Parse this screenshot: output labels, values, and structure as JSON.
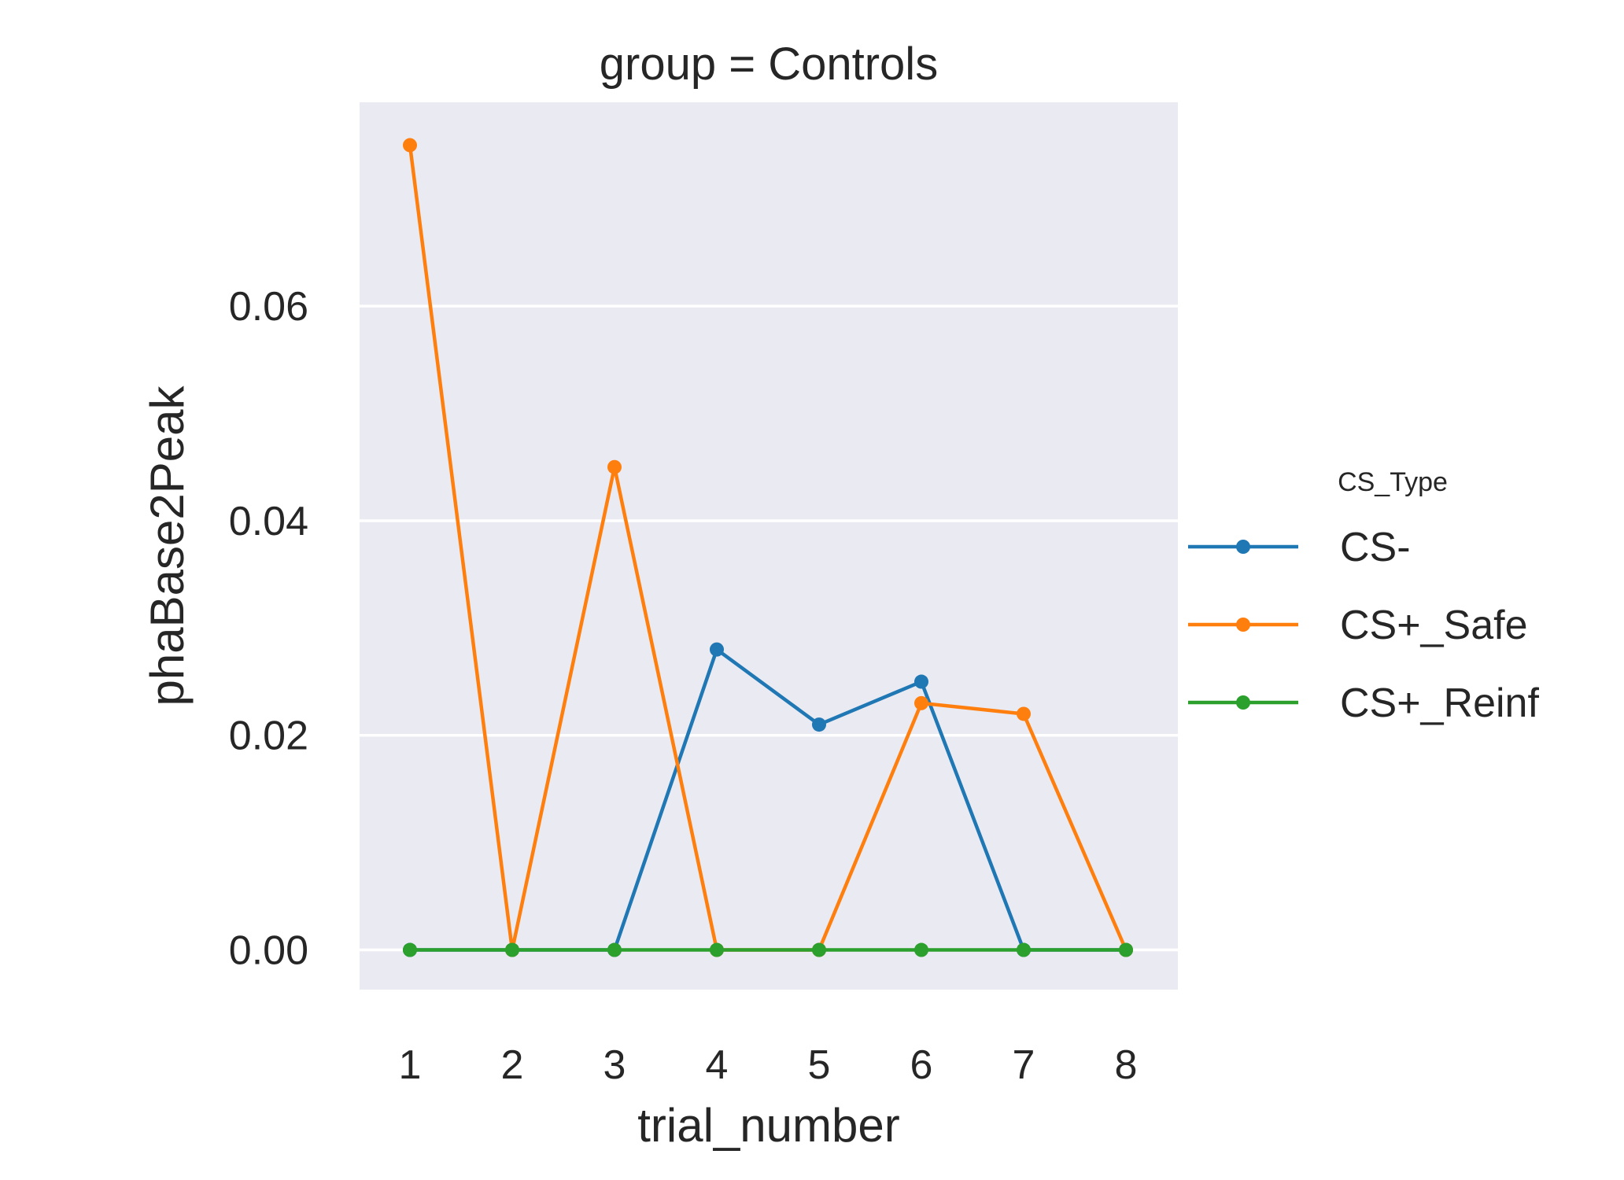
{
  "chart_data": {
    "type": "line",
    "title": "group = Controls",
    "xlabel": "trial_number",
    "ylabel": "phaBase2Peak",
    "x": [
      1,
      2,
      3,
      4,
      5,
      6,
      7,
      8
    ],
    "x_ticks": [
      "1",
      "2",
      "3",
      "4",
      "5",
      "6",
      "7",
      "8"
    ],
    "y_ticks": [
      "0.00",
      "0.02",
      "0.04",
      "0.06"
    ],
    "y_tick_values": [
      0.0,
      0.02,
      0.04,
      0.06
    ],
    "ylim": [
      -0.0037,
      0.079
    ],
    "grid": true,
    "legend": {
      "title": "CS_Type",
      "placement": "right"
    },
    "series": [
      {
        "name": "CS-",
        "color": "#1f77b4",
        "values": [
          0.0,
          0.0,
          0.0,
          0.028,
          0.021,
          0.025,
          0.0,
          0.0
        ]
      },
      {
        "name": "CS+_Safe",
        "color": "#ff7f0e",
        "values": [
          0.075,
          0.0,
          0.045,
          0.0,
          0.0,
          0.023,
          0.022,
          0.0
        ]
      },
      {
        "name": "CS+_Reinf",
        "color": "#2ca02c",
        "values": [
          0.0,
          0.0,
          0.0,
          0.0,
          0.0,
          0.0,
          0.0,
          0.0
        ]
      }
    ],
    "background_color": "#eaeaf2",
    "grid_color": "#ffffff"
  }
}
